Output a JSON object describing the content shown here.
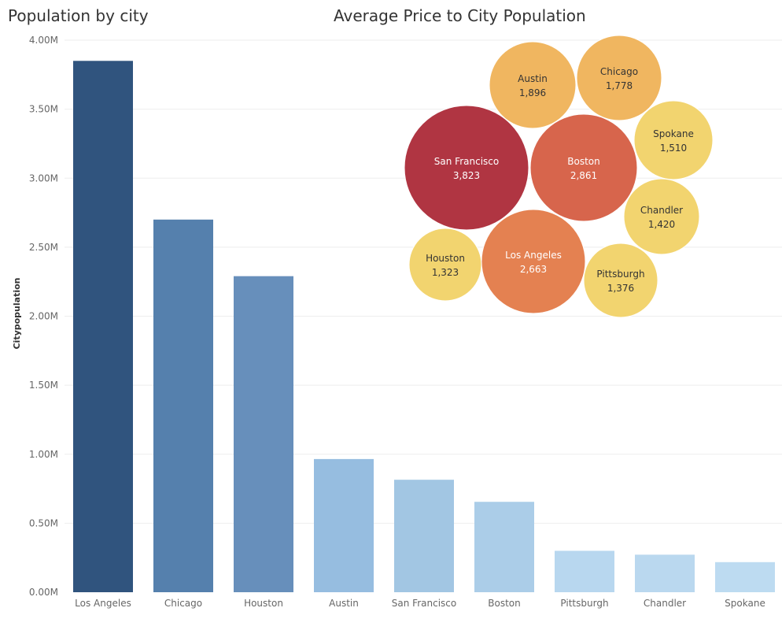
{
  "chart_data": [
    {
      "type": "bar",
      "title": "Population by city",
      "xlabel": "",
      "ylabel": "Citypopulation",
      "ylim": [
        0,
        4000000
      ],
      "yticks": [
        "0.00M",
        "0.50M",
        "1.00M",
        "1.50M",
        "2.00M",
        "2.50M",
        "3.00M",
        "3.50M",
        "4.00M"
      ],
      "categories": [
        "Los Angeles",
        "Chicago",
        "Houston",
        "Austin",
        "San Francisco",
        "Boston",
        "Pittsburgh",
        "Chandler",
        "Spokane"
      ],
      "values": [
        3850000,
        2700000,
        2290000,
        965000,
        815000,
        655000,
        300000,
        272000,
        218000
      ],
      "colors": [
        "#30547e",
        "#5580ad",
        "#678fbb",
        "#96bde0",
        "#a2c6e3",
        "#abcde8",
        "#b8d7ef",
        "#bad8ef",
        "#bddbf1"
      ]
    },
    {
      "type": "bubble",
      "title": "Average Price to City Population",
      "bubbles": [
        {
          "label": "San Francisco",
          "value": "3,823",
          "color": "#b03542",
          "text_color": "#ffffff"
        },
        {
          "label": "Boston",
          "value": "2,861",
          "color": "#d7654c",
          "text_color": "#ffffff"
        },
        {
          "label": "Los Angeles",
          "value": "2,663",
          "color": "#e48151",
          "text_color": "#ffffff"
        },
        {
          "label": "Austin",
          "value": "1,896",
          "color": "#f0b660",
          "text_color": "#333333"
        },
        {
          "label": "Chicago",
          "value": "1,778",
          "color": "#f0b660",
          "text_color": "#333333"
        },
        {
          "label": "Spokane",
          "value": "1,510",
          "color": "#f2d46f",
          "text_color": "#333333"
        },
        {
          "label": "Chandler",
          "value": "1,420",
          "color": "#f2d46f",
          "text_color": "#333333"
        },
        {
          "label": "Pittsburgh",
          "value": "1,376",
          "color": "#f2d46f",
          "text_color": "#333333"
        },
        {
          "label": "Houston",
          "value": "1,323",
          "color": "#f2d46f",
          "text_color": "#333333"
        }
      ]
    }
  ]
}
